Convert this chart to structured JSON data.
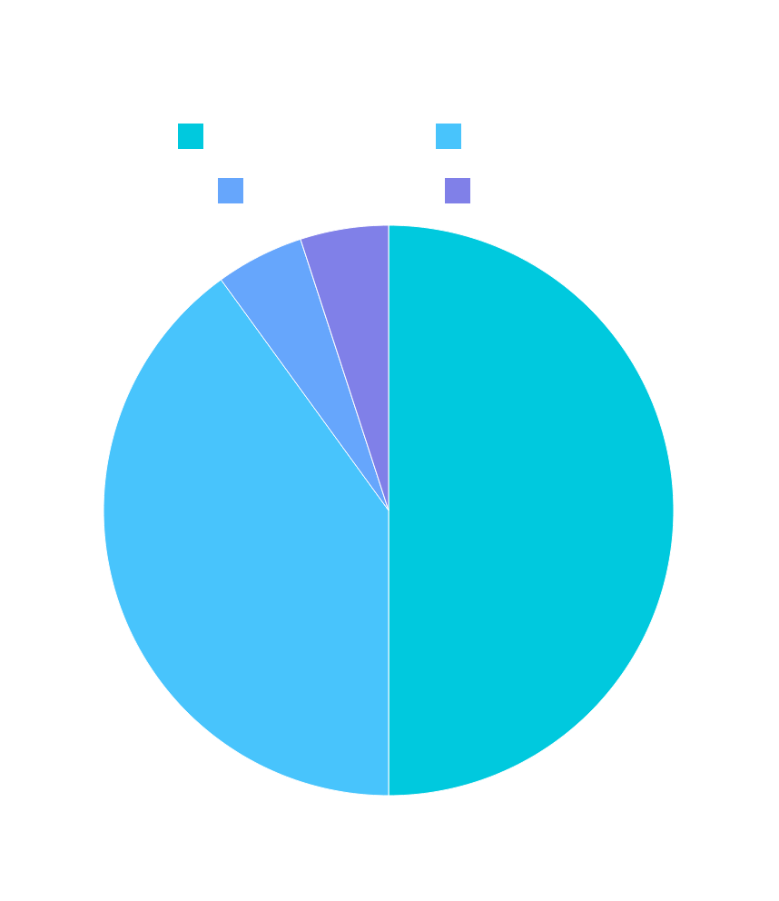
{
  "chart_data": {
    "type": "pie",
    "categories": [
      null,
      null,
      null,
      null
    ],
    "values": [
      50,
      40,
      5,
      5
    ],
    "colors": [
      "#00c9de",
      "#48c4fc",
      "#66a6fc",
      "#8080e8"
    ]
  }
}
